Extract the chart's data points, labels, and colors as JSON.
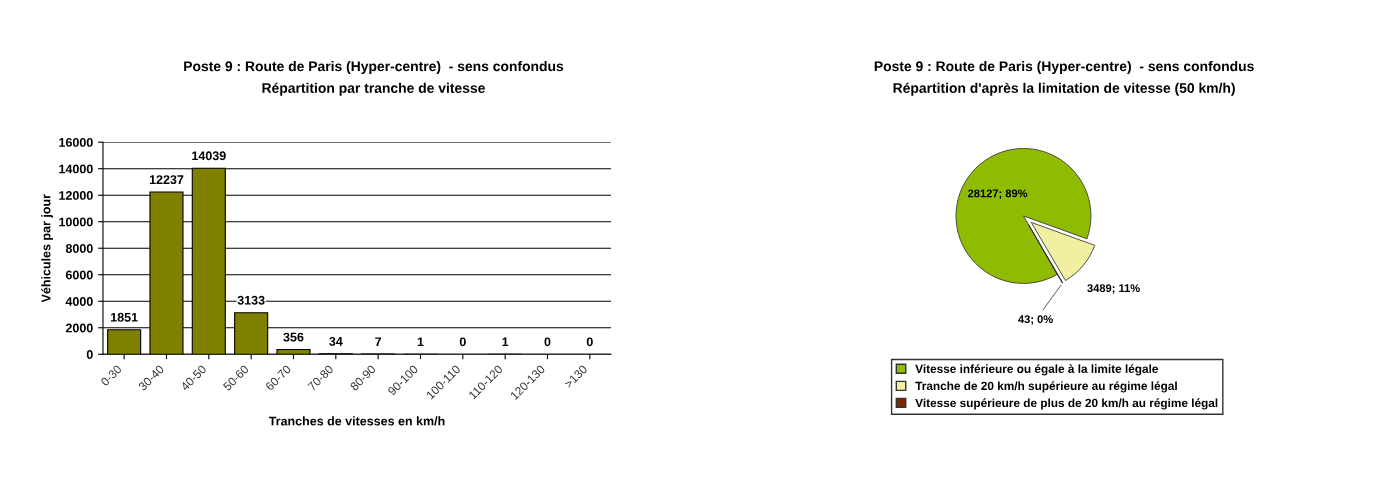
{
  "chart_data": [
    {
      "type": "bar",
      "title": "Poste 9 : Route de Paris (Hyper-centre)  - sens confondus",
      "subtitle": "Répartition par tranche de vitesse",
      "xlabel": "Tranches de vitesses en km/h",
      "ylabel": "Véhicules par jour",
      "categories": [
        "0-30",
        "30-40",
        "40-50",
        "50-60",
        "60-70",
        "70-80",
        "80-90",
        "90-100",
        "100-110",
        "110-120",
        "120-130",
        ">130"
      ],
      "values": [
        1851,
        12237,
        14039,
        3133,
        356,
        34,
        7,
        1,
        0,
        1,
        0,
        0
      ],
      "color": "#808000",
      "ylim": [
        0,
        16000
      ],
      "yticks": [
        0,
        2000,
        4000,
        6000,
        8000,
        10000,
        12000,
        14000,
        16000
      ],
      "grid": "y",
      "data_labels": true
    },
    {
      "type": "pie",
      "title": "Poste 9 : Route de Paris (Hyper-centre)  - sens confondus",
      "subtitle": "Répartition d'après la limitation de vitesse (50 km/h)",
      "categories": [
        "Vitesse inférieure ou égale à la limite légale",
        "Tranche de 20 km/h supérieure au régime légal",
        "Vitesse supérieure de plus de 20 km/h au régime légal"
      ],
      "values": [
        28127,
        3489,
        43
      ],
      "colors": [
        "#8fbc00",
        "#f0f0a0",
        "#7a2a00"
      ],
      "value_labels": [
        "28127; 89%",
        "3489; 11%",
        "43; 0%"
      ],
      "legend": "bottom"
    }
  ]
}
